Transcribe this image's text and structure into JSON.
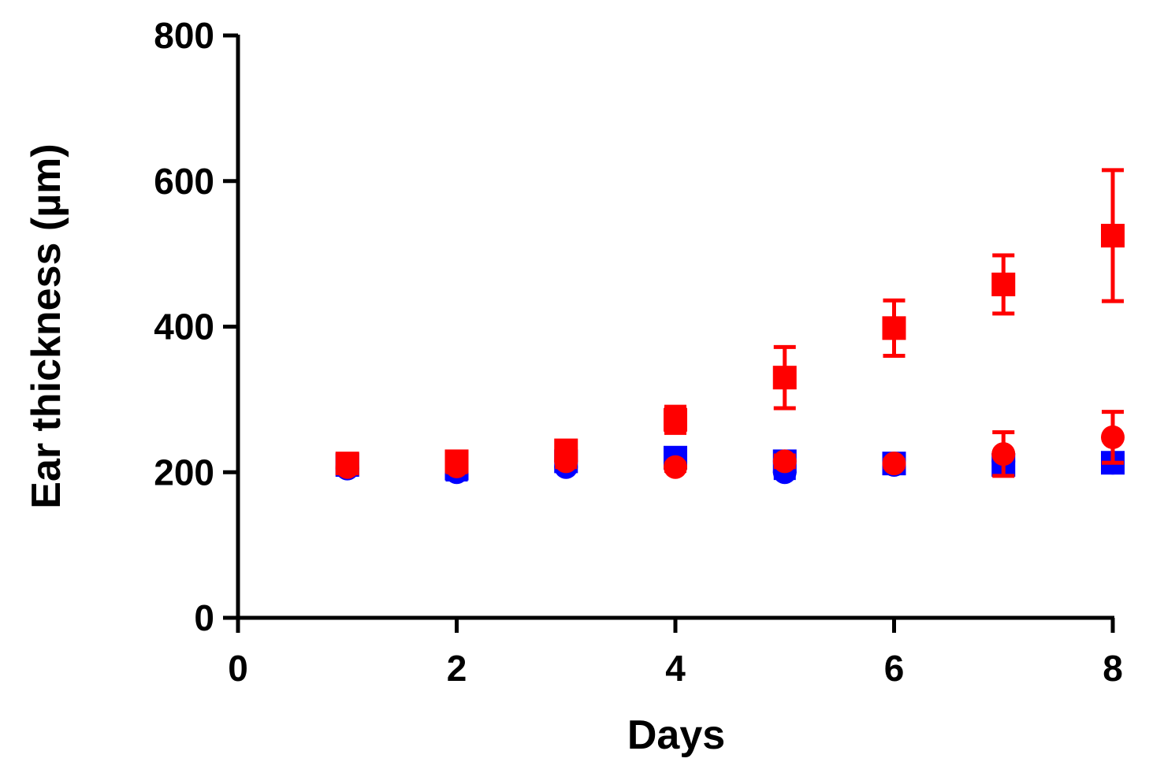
{
  "chart_data": {
    "type": "scatter",
    "title": "",
    "xlabel": "Days",
    "ylabel": "Ear thickness (µm)",
    "xlim": [
      0,
      8
    ],
    "ylim": [
      0,
      800
    ],
    "x_ticks": [
      "0",
      "2",
      "4",
      "6",
      "8"
    ],
    "y_ticks": [
      "0",
      "200",
      "400",
      "600",
      "800"
    ],
    "grid": false,
    "legend": "none",
    "series": [
      {
        "marker": "square",
        "color": "#0000ff",
        "x": [
          1,
          2,
          3,
          4,
          5,
          6,
          7,
          8
        ],
        "y": [
          210,
          205,
          215,
          220,
          215,
          212,
          210,
          213
        ],
        "err": [
          5,
          15,
          8,
          10,
          10,
          8,
          10,
          10
        ]
      },
      {
        "marker": "circle",
        "color": "#0000ff",
        "x": [
          1,
          2,
          3,
          4,
          5,
          6,
          7,
          8
        ],
        "y": [
          205,
          200,
          207,
          210,
          200,
          210,
          215,
          213
        ],
        "err": [
          5,
          8,
          5,
          8,
          8,
          5,
          8,
          8
        ]
      },
      {
        "marker": "square",
        "color": "#ff0000",
        "x": [
          1,
          2,
          3,
          4,
          5,
          6,
          7,
          8
        ],
        "y": [
          212,
          215,
          230,
          272,
          330,
          398,
          458,
          525
        ],
        "err": [
          8,
          8,
          10,
          18,
          42,
          38,
          40,
          90
        ]
      },
      {
        "marker": "circle",
        "color": "#ff0000",
        "x": [
          1,
          2,
          3,
          4,
          5,
          6,
          7,
          8
        ],
        "y": [
          207,
          208,
          215,
          207,
          215,
          212,
          225,
          248
        ],
        "err": [
          5,
          8,
          8,
          5,
          8,
          5,
          30,
          35
        ]
      }
    ]
  }
}
